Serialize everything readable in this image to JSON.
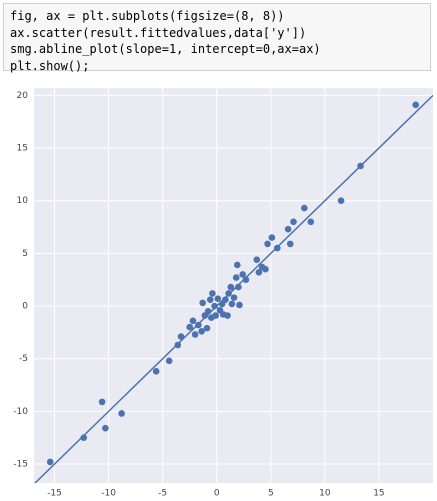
{
  "code": {
    "lines": [
      "fig, ax = plt.subplots(figsize=(8, 8))",
      "ax.scatter(result.fittedvalues,data['y'])",
      "smg.abline_plot(slope=1, intercept=0,ax=ax)",
      "plt.show();"
    ]
  },
  "chart_data": {
    "type": "scatter",
    "color": "#4c72b0",
    "x": [
      -15.4,
      -12.3,
      -10.6,
      -10.3,
      -8.8,
      -5.6,
      -4.4,
      -3.6,
      -3.3,
      -2.5,
      -2.2,
      -2.0,
      -1.7,
      -1.4,
      -1.3,
      -1.1,
      -0.9,
      -0.8,
      -0.6,
      -0.5,
      -0.4,
      -0.2,
      -0.1,
      0.1,
      0.3,
      0.5,
      0.6,
      0.8,
      1.0,
      1.1,
      1.3,
      1.4,
      1.6,
      1.8,
      1.9,
      2.0,
      2.1,
      2.4,
      2.7,
      3.7,
      3.9,
      4.2,
      4.5,
      4.7,
      5.1,
      5.6,
      6.6,
      6.8,
      7.1,
      8.1,
      8.7,
      11.5,
      13.3,
      18.4
    ],
    "values": [
      -14.8,
      -12.5,
      -9.1,
      -11.6,
      -10.2,
      -6.2,
      -5.2,
      -3.7,
      -2.9,
      -2.0,
      -1.4,
      -2.7,
      -1.8,
      -2.4,
      0.3,
      -0.9,
      -2.1,
      -0.5,
      0.6,
      -1.1,
      1.2,
      0,
      -0.9,
      0.7,
      -0.4,
      0.2,
      -0.8,
      0.6,
      -0.9,
      1.2,
      1.8,
      0.2,
      0.8,
      2.7,
      3.9,
      1.8,
      0.1,
      3.0,
      2.5,
      4.4,
      3.2,
      3.7,
      3.5,
      5.9,
      6.5,
      5.5,
      7.3,
      5.9,
      8.0,
      9.3,
      8.0,
      10.0,
      13.3,
      19.1
    ],
    "abline": {
      "slope": 1,
      "intercept": 0,
      "color": "#4c72b0"
    },
    "xlim": [
      -16.9,
      20
    ],
    "ylim": [
      -16.8,
      20.7
    ],
    "xticks": [
      -15,
      -10,
      -5,
      0,
      5,
      10,
      15
    ],
    "yticks": [
      -15,
      -10,
      -5,
      0,
      5,
      10,
      15,
      20
    ],
    "grid": true,
    "background": "#eaeaf2"
  }
}
